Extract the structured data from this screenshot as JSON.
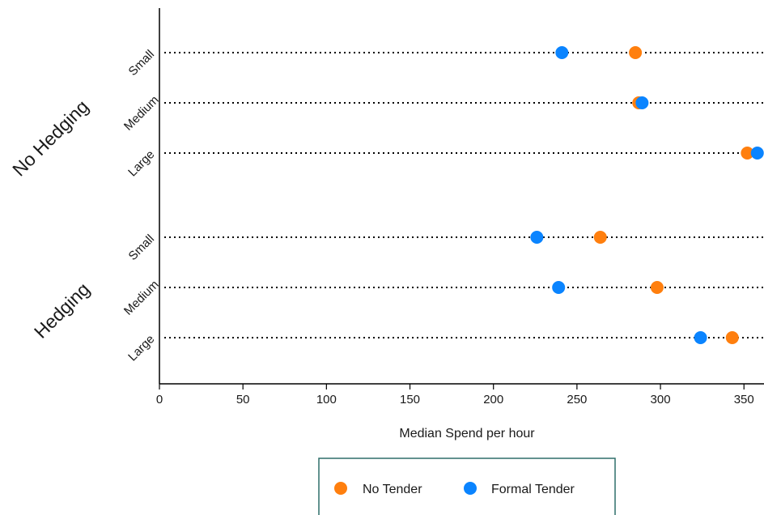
{
  "chart_data": {
    "type": "dot",
    "xlabel": "Median Spend per hour",
    "ylabel": "",
    "xlim": [
      0,
      362
    ],
    "xticks": [
      0,
      50,
      100,
      150,
      200,
      250,
      300,
      350
    ],
    "groups": [
      {
        "name": "No Hedging",
        "categories": [
          "Small",
          "Medium",
          "Large"
        ]
      },
      {
        "name": "Hedging",
        "categories": [
          "Small",
          "Medium",
          "Large"
        ]
      }
    ],
    "series": [
      {
        "name": "No Tender",
        "color": "#ff7f0e",
        "values": [
          {
            "group": "No Hedging",
            "category": "Small",
            "x": 285
          },
          {
            "group": "No Hedging",
            "category": "Medium",
            "x": 287
          },
          {
            "group": "No Hedging",
            "category": "Large",
            "x": 352
          },
          {
            "group": "Hedging",
            "category": "Small",
            "x": 264
          },
          {
            "group": "Hedging",
            "category": "Medium",
            "x": 298
          },
          {
            "group": "Hedging",
            "category": "Large",
            "x": 343
          }
        ]
      },
      {
        "name": "Formal Tender",
        "color": "#0a84ff",
        "values": [
          {
            "group": "No Hedging",
            "category": "Small",
            "x": 241
          },
          {
            "group": "No Hedging",
            "category": "Medium",
            "x": 289
          },
          {
            "group": "No Hedging",
            "category": "Large",
            "x": 358
          },
          {
            "group": "Hedging",
            "category": "Small",
            "x": 226
          },
          {
            "group": "Hedging",
            "category": "Medium",
            "x": 239
          },
          {
            "group": "Hedging",
            "category": "Large",
            "x": 324
          }
        ]
      }
    ],
    "grid": "dotted horizontal lines per row",
    "legend_position": "bottom-center"
  }
}
